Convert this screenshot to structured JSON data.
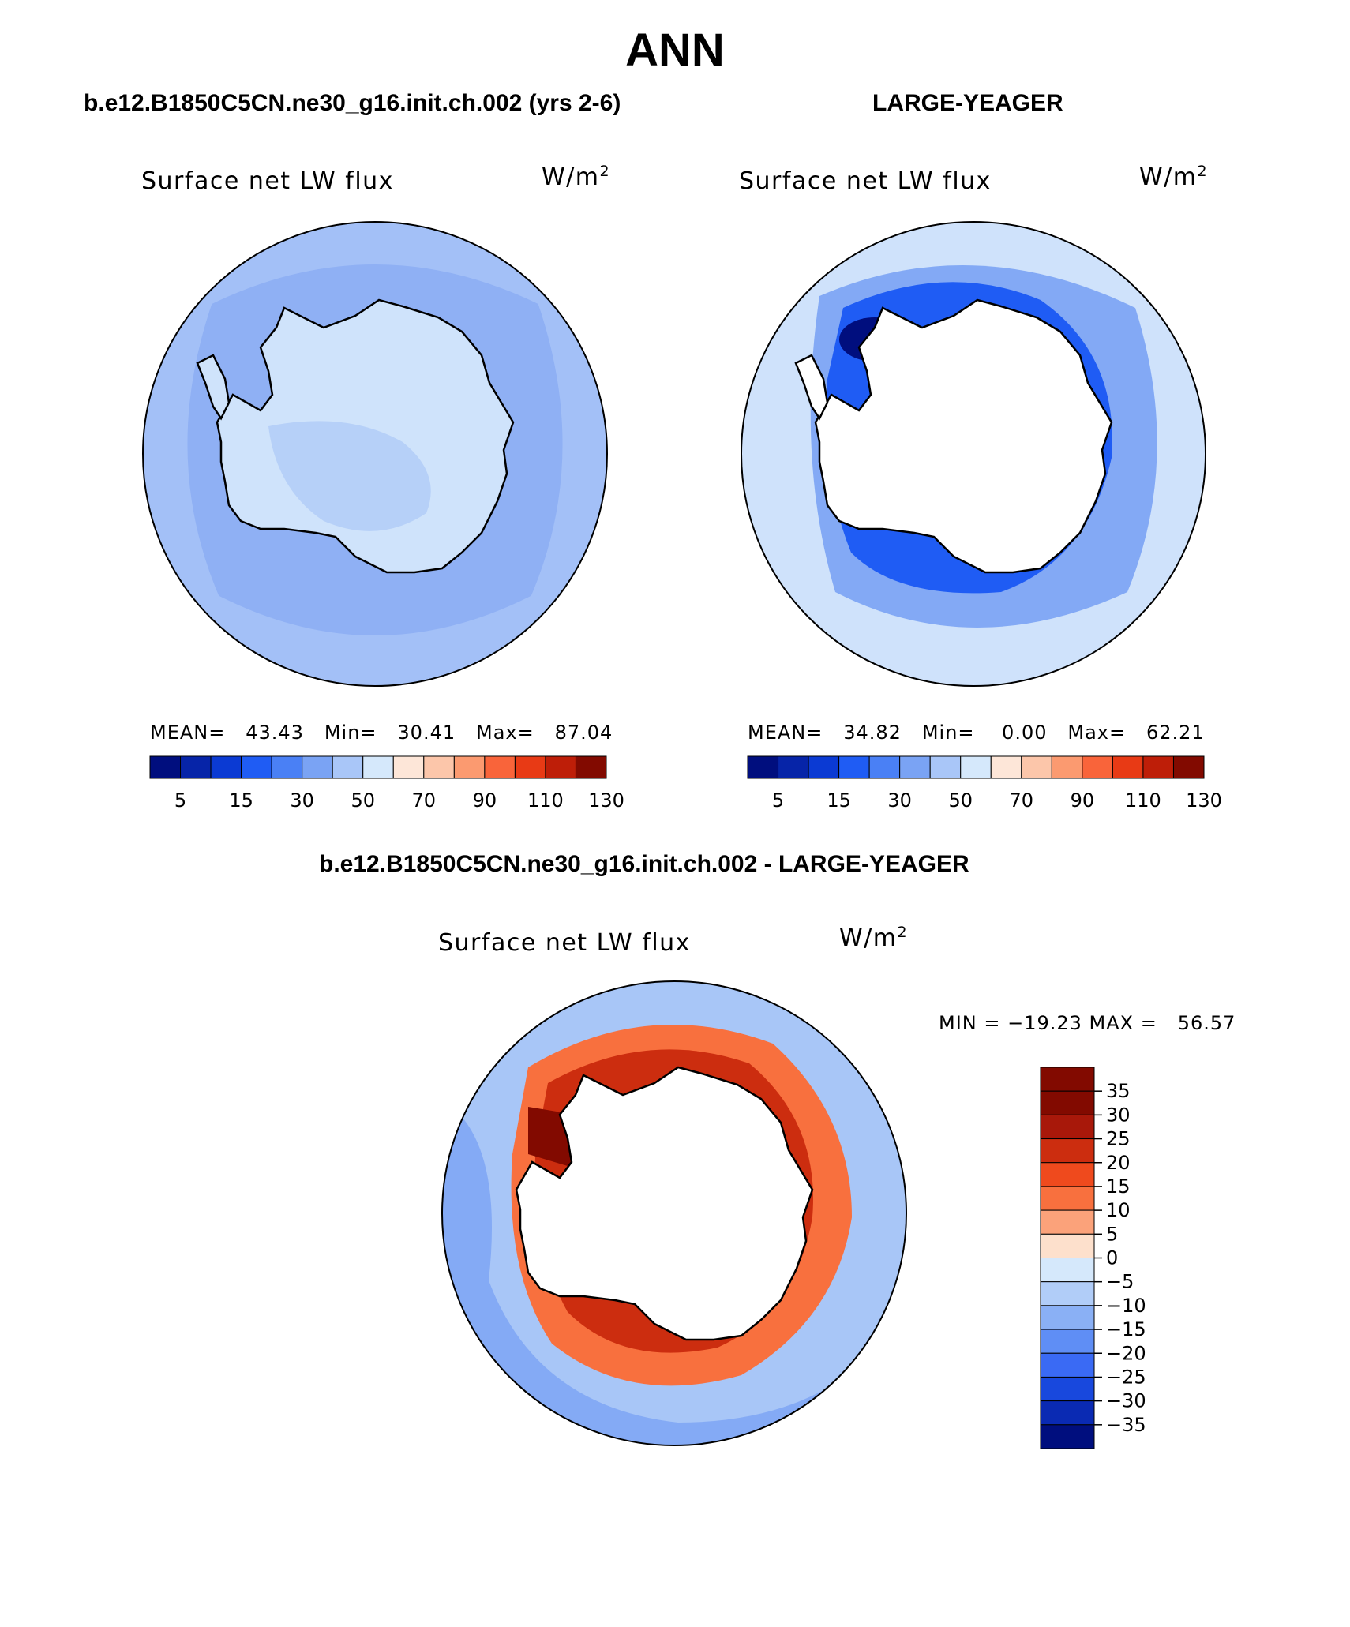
{
  "page": {
    "season_title": "ANN",
    "colors": {
      "land": "#ffffff",
      "coast": "#000000"
    }
  },
  "panels": {
    "model": {
      "case": "b.e12.B1850C5CN.ne30_g16.init.ch.002 (yrs 2-6)",
      "variable": "Surface net LW flux",
      "units_base": "W/m",
      "units_exp": "2",
      "stats": "MEAN=   43.43   Min=   30.41   Max=   87.04",
      "fill": "#8fb0f4"
    },
    "obs": {
      "case": "LARGE-YEAGER",
      "variable": "Surface net LW flux",
      "units_base": "W/m",
      "units_exp": "2",
      "stats": "MEAN=   34.82   Min=    0.00   Max=   62.21",
      "fill": "#cfe2fb"
    },
    "diff": {
      "case": "b.e12.B1850C5CN.ne30_g16.init.ch.002 - LARGE-YEAGER",
      "variable": "Surface net LW flux",
      "units_base": "W/m",
      "units_exp": "2",
      "stats": "MIN = −19.23 MAX =   56.57",
      "fill": "#a8c6f7"
    }
  },
  "colorbars": {
    "absolute": {
      "colors": [
        "#000e7e",
        "#0624a8",
        "#0b3ad3",
        "#1f5cf4",
        "#4a80f5",
        "#7aa3f4",
        "#a9c6f8",
        "#d5e8fb",
        "#fde6d8",
        "#fcc6aa",
        "#fb9a70",
        "#f9643a",
        "#e83a15",
        "#be1e08",
        "#820a00"
      ],
      "labels": [
        "5",
        "15",
        "30",
        "50",
        "70",
        "90",
        "110",
        "130"
      ]
    },
    "difference": {
      "colors": [
        "#820a00",
        "#a8180a",
        "#cc2d0f",
        "#ef4a1d",
        "#f8703e",
        "#fba27a",
        "#fde0cc",
        "#d5e8fb",
        "#b1cdf8",
        "#8ab0f5",
        "#5f8ef5",
        "#3a6af4",
        "#1848dd",
        "#0a2ab3",
        "#000e7e"
      ],
      "labels": [
        "35",
        "30",
        "25",
        "20",
        "15",
        "10",
        "5",
        "0",
        "−5",
        "−10",
        "−15",
        "−20",
        "−25",
        "−30",
        "−35"
      ]
    }
  }
}
